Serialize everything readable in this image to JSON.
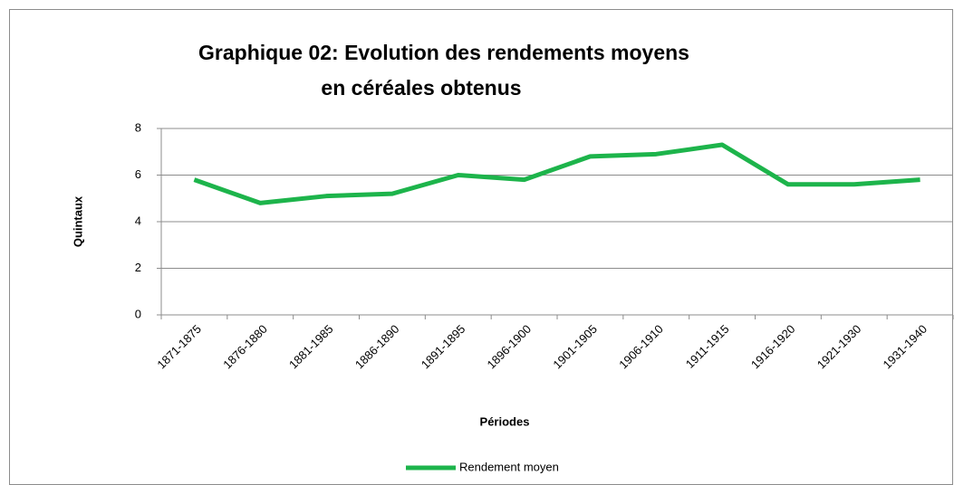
{
  "chart_data": {
    "type": "line",
    "title": [
      "Graphique 02: Evolution des rendements moyens",
      "en céréales obtenus"
    ],
    "x_label": "Périodes",
    "y_label": "Quintaux",
    "categories": [
      "1871-1875",
      "1876-1880",
      "1881-1985",
      "1886-1890",
      "1891-1895",
      "1896-1900",
      "1901-1905",
      "1906-1910",
      "1911-1915",
      "1916-1920",
      "1921-1930",
      "1931-1940"
    ],
    "series": [
      {
        "name": "Rendement moyen",
        "color": "#1db44b",
        "values": [
          5.8,
          4.8,
          5.1,
          5.2,
          6.0,
          5.8,
          6.8,
          6.9,
          7.3,
          5.6,
          5.6,
          5.8
        ]
      }
    ],
    "ylim": [
      0,
      8
    ],
    "yticks": [
      0,
      2,
      4,
      6,
      8
    ],
    "grid": true,
    "legend": "bottom"
  }
}
